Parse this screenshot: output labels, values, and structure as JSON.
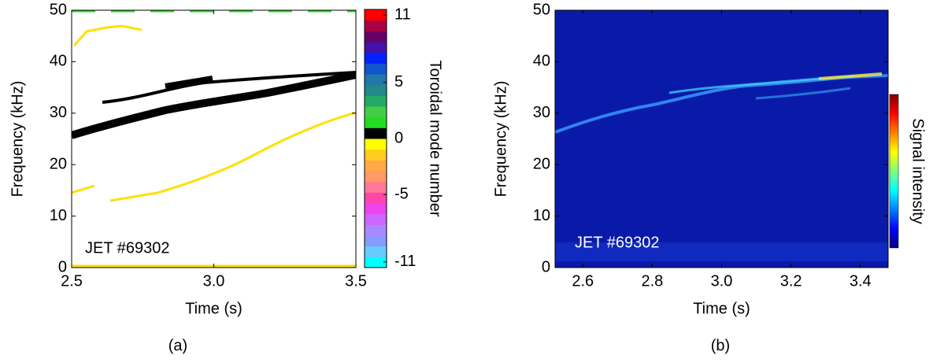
{
  "chart_data": [
    {
      "type": "heatmap",
      "xlabel": "Time (s)",
      "ylabel": "Frequency (kHz)",
      "annotation": "JET #69302",
      "caption": "(a)",
      "xlim": [
        2.5,
        3.5
      ],
      "xticks": [
        {
          "value": 2.5,
          "label": "2.5"
        },
        {
          "value": 3,
          "label": "3.0"
        },
        {
          "value": 3.5,
          "label": "3.5"
        }
      ],
      "ylim": [
        0,
        50
      ],
      "yticks": [
        0,
        10,
        20,
        30,
        40,
        50
      ],
      "colorbar": {
        "label": "Toroidal mode number",
        "lim": [
          -11.5,
          11.5
        ],
        "ticks": [
          11,
          5,
          0,
          -5,
          -11
        ],
        "colors": [
          "#00ffff",
          "#66ccff",
          "#8899ff",
          "#aa88ff",
          "#cc66ff",
          "#ee44ee",
          "#ff44aa",
          "#ff7799",
          "#ff9966",
          "#ffaa44",
          "#ffcc22",
          "#ffff00",
          "#000000",
          "#22dd22",
          "#44cc44",
          "#22aa66",
          "#228888",
          "#2277aa",
          "#1155cc",
          "#0022ff",
          "#4411aa",
          "#660066",
          "#aa0044",
          "#ff0000"
        ]
      }
    },
    {
      "type": "spectrogram",
      "xlabel": "Time (s)",
      "ylabel": "Frequency (kHz)",
      "annotation": "JET #69302",
      "caption": "(b)",
      "xlim": [
        2.52,
        3.48
      ],
      "xticks": [
        2.6,
        2.8,
        {
          "value": 3,
          "label": "3.0"
        },
        3.2,
        3.4
      ],
      "ylim": [
        0,
        50
      ],
      "yticks": [
        0,
        10,
        20,
        30,
        40,
        50
      ],
      "colorbar": {
        "label": "Signal intensity",
        "colors": [
          "#00007f",
          "#0000ff",
          "#0080ff",
          "#00ffff",
          "#80ff80",
          "#ffff00",
          "#ff8000",
          "#ff0000",
          "#7f0000"
        ]
      }
    }
  ]
}
